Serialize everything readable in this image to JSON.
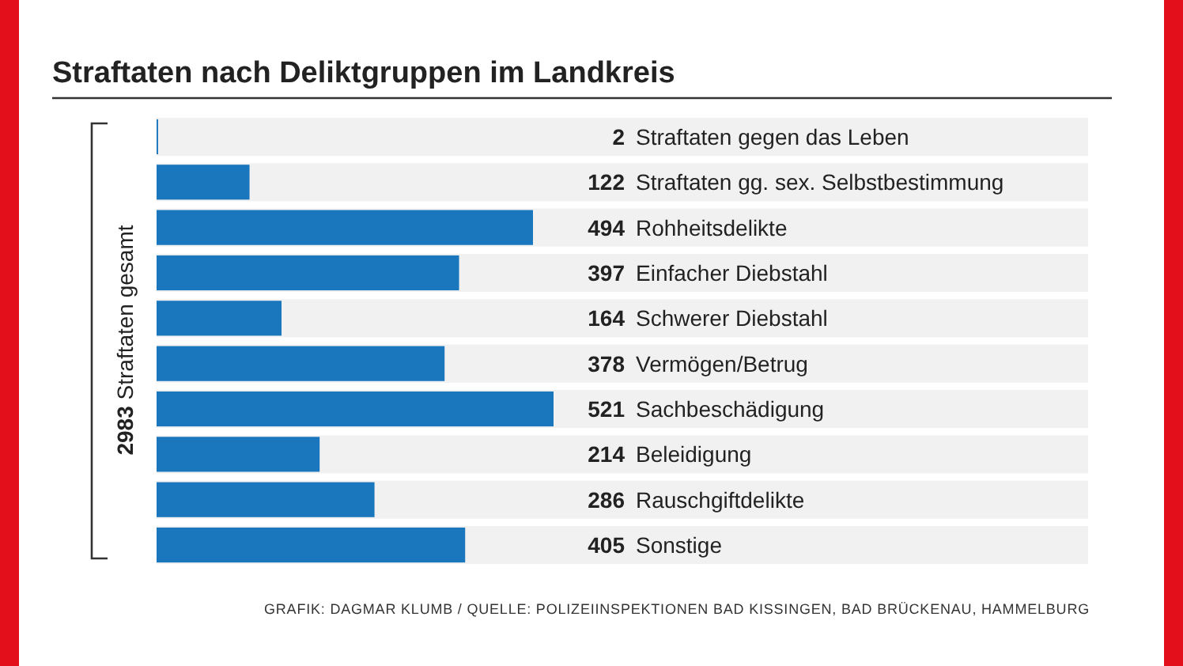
{
  "chart_data": {
    "type": "bar",
    "orientation": "horizontal",
    "title": "Straftaten nach Deliktgruppen im Landkreis",
    "categories": [
      "Straftaten gegen das Leben",
      "Straftaten gg. sex. Selbstbestimmung",
      "Rohheitsdelikte",
      "Einfacher Diebstahl",
      "Schwerer Diebstahl",
      "Vermögen/Betrug",
      "Sachbeschädigung",
      "Beleidigung",
      "Rauschgiftdelikte",
      "Sonstige"
    ],
    "values": [
      2,
      122,
      494,
      397,
      164,
      378,
      521,
      214,
      286,
      405
    ],
    "color": "#1a76bd",
    "data_labels": true,
    "annotations": [
      "2983 Straftaten gesamt",
      "GRAFIK: DAGMAR KLUMB / QUELLE: POLIZEIINSPEKTIONEN BAD KISSINGEN, BAD BRÜCKENAU, HAMMELBURG"
    ]
  }
}
